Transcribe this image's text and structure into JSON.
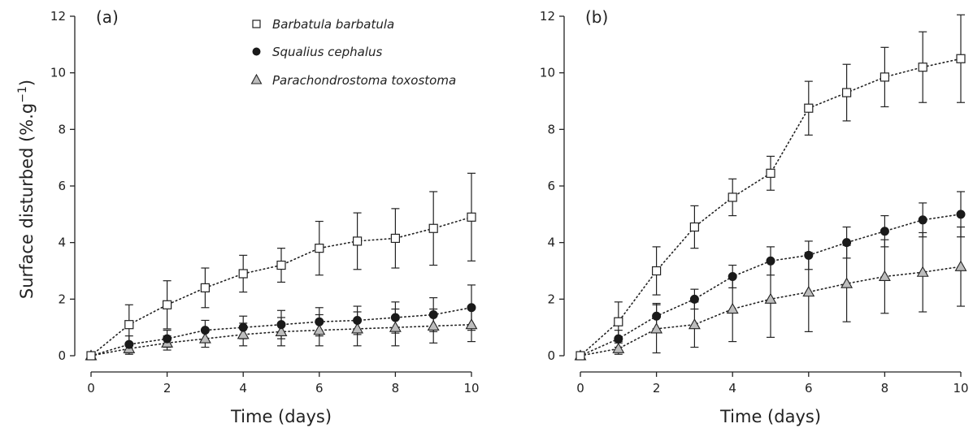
{
  "y_axis_label": "Surface disturbed (%.g",
  "y_axis_label_sup": "−1",
  "y_axis_label_close": ")",
  "legend": [
    {
      "name": "Barbatula barbatula",
      "marker": "square"
    },
    {
      "name": "Squalius cephalus",
      "marker": "circle"
    },
    {
      "name": "Parachondrostoma toxostoma",
      "marker": "triangle"
    }
  ],
  "chart_data": [
    {
      "type": "line",
      "panel": "(a)",
      "xlabel": "Time (days)",
      "ylabel": "Surface disturbed (%.g−1)",
      "xlim": [
        0,
        10
      ],
      "ylim": [
        0,
        12
      ],
      "xticks": [
        0,
        2,
        4,
        6,
        8,
        10
      ],
      "yticks": [
        0,
        2,
        4,
        6,
        8,
        10,
        12
      ],
      "x": [
        0,
        1,
        2,
        3,
        4,
        5,
        6,
        7,
        8,
        9,
        10
      ],
      "legend_position": "top-center",
      "series": [
        {
          "name": "Barbatula barbatula",
          "marker": "square",
          "values": [
            0,
            1.1,
            1.8,
            2.4,
            2.9,
            3.2,
            3.8,
            4.05,
            4.15,
            4.5,
            4.9
          ],
          "error": [
            0,
            0.7,
            0.85,
            0.7,
            0.65,
            0.6,
            0.95,
            1.0,
            1.05,
            1.3,
            1.55
          ]
        },
        {
          "name": "Squalius cephalus",
          "marker": "circle",
          "values": [
            0,
            0.4,
            0.6,
            0.9,
            1.0,
            1.1,
            1.2,
            1.25,
            1.35,
            1.45,
            1.7
          ],
          "error": [
            0,
            0.3,
            0.3,
            0.35,
            0.4,
            0.5,
            0.5,
            0.5,
            0.55,
            0.6,
            0.8
          ]
        },
        {
          "name": "Parachondrostoma toxostoma",
          "marker": "triangle",
          "values": [
            0,
            0.25,
            0.45,
            0.6,
            0.75,
            0.85,
            0.9,
            0.95,
            1.0,
            1.05,
            1.1
          ],
          "error": [
            0,
            0.2,
            0.25,
            0.3,
            0.4,
            0.5,
            0.55,
            0.6,
            0.65,
            0.6,
            0.6
          ]
        }
      ]
    },
    {
      "type": "line",
      "panel": "(b)",
      "xlabel": "Time (days)",
      "ylabel": "",
      "xlim": [
        0,
        10
      ],
      "ylim": [
        0,
        12
      ],
      "xticks": [
        0,
        2,
        4,
        6,
        8,
        10
      ],
      "yticks": [
        0,
        2,
        4,
        6,
        8,
        10,
        12
      ],
      "x": [
        0,
        1,
        2,
        3,
        4,
        5,
        6,
        7,
        8,
        9,
        10
      ],
      "series": [
        {
          "name": "Barbatula barbatula",
          "marker": "square",
          "values": [
            0,
            1.2,
            3.0,
            4.55,
            5.6,
            6.45,
            8.75,
            9.3,
            9.85,
            10.2,
            10.5
          ],
          "error": [
            0,
            0.7,
            0.85,
            0.75,
            0.65,
            0.6,
            0.95,
            1.0,
            1.05,
            1.25,
            1.55
          ]
        },
        {
          "name": "Squalius cephalus",
          "marker": "circle",
          "values": [
            0,
            0.6,
            1.4,
            2.0,
            2.8,
            3.35,
            3.55,
            4.0,
            4.4,
            4.8,
            5.0
          ],
          "error": [
            0,
            0.3,
            0.45,
            0.35,
            0.4,
            0.5,
            0.5,
            0.55,
            0.55,
            0.6,
            0.8
          ]
        },
        {
          "name": "Parachondrostoma toxostoma",
          "marker": "triangle",
          "values": [
            0,
            0.25,
            0.95,
            1.1,
            1.65,
            2.0,
            2.25,
            2.55,
            2.8,
            2.95,
            3.15
          ],
          "error": [
            0,
            0.2,
            0.85,
            0.8,
            1.15,
            1.35,
            1.4,
            1.35,
            1.3,
            1.4,
            1.4
          ]
        }
      ]
    }
  ]
}
